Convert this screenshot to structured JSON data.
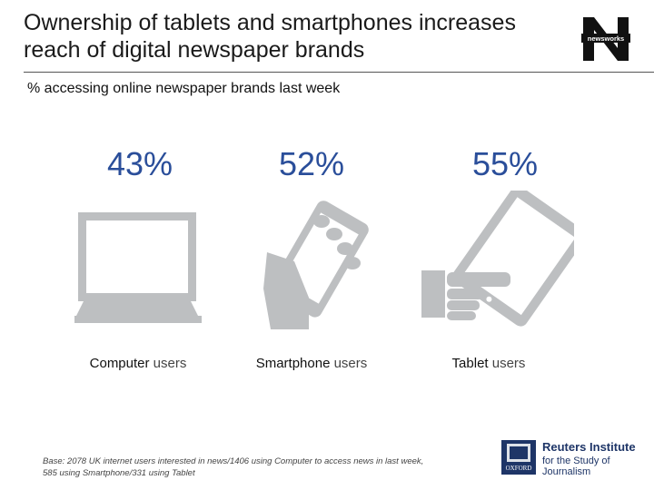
{
  "header": {
    "title_line1": "Ownership of tablets and smartphones increases",
    "title_line2": "reach of digital newspaper brands",
    "logo_text": "newsworks"
  },
  "subtitle": "% accessing online newspaper brands last week",
  "groups": [
    {
      "percent": "43%",
      "value": 43,
      "label_bold": "Computer",
      "label_rest": " users",
      "icon": "computer-icon"
    },
    {
      "percent": "52%",
      "value": 52,
      "label_bold": "Smartphone",
      "label_rest": " users",
      "icon": "smartphone-in-hand-icon"
    },
    {
      "percent": "55%",
      "value": 55,
      "label_bold": "Tablet",
      "label_rest": " users",
      "icon": "tablet-pointing-icon"
    }
  ],
  "footnote": {
    "line1": "Base: 2078 UK internet users interested in news/1406 using Computer to access news in last week,",
    "line2": "585 using Smartphone/331 using Tablet"
  },
  "footer_logo": {
    "oxford_text": "OXFORD",
    "line1": "Reuters Institute",
    "line2": "for the Study of Journalism"
  },
  "colors": {
    "percent": "#2a4e9a",
    "icon_gray": "#bdbfc1",
    "reuters_blue": "#1e3567",
    "oxford_blue": "#1e3567"
  }
}
